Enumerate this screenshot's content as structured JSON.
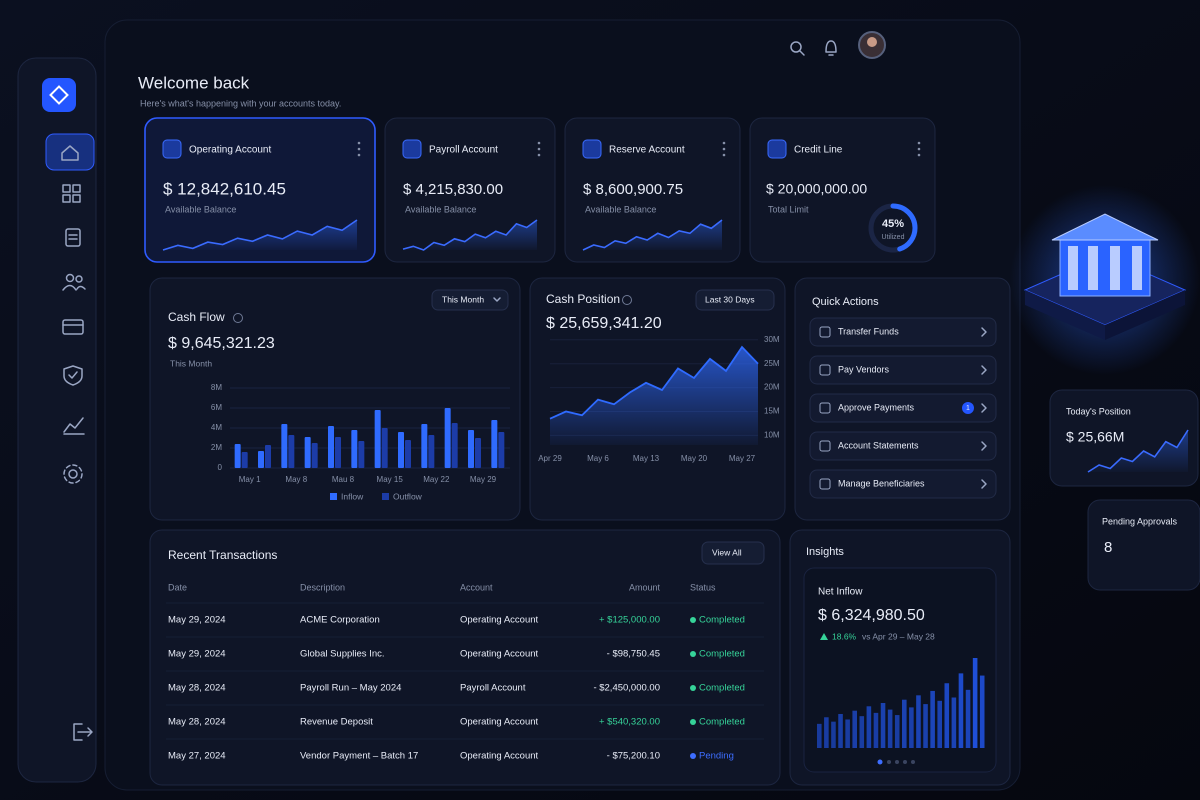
{
  "header": {
    "title": "Welcome back",
    "subtitle": "Here's what's happening with your accounts today."
  },
  "accounts": [
    {
      "name": "Operating Account",
      "balance": "$ 12,842,610.45",
      "balance_label": "Available Balance",
      "trend": [
        2,
        2.6,
        2.2,
        3,
        2.7,
        3.5,
        3.1,
        3.9,
        3.4,
        4.4,
        3.9,
        5,
        4.5,
        5.8
      ]
    },
    {
      "name": "Payroll Account",
      "balance": "$ 4,215,830.00",
      "balance_label": "Available Balance",
      "trend": [
        2.5,
        2.8,
        2.4,
        3.2,
        2.9,
        3.6,
        3.3,
        4.1,
        3.7,
        4.4,
        4,
        5.2,
        4.8,
        5.6
      ]
    },
    {
      "name": "Reserve Account",
      "balance": "$ 8,600,900.75",
      "balance_label": "Available Balance",
      "trend": [
        1.8,
        2.4,
        2.1,
        2.9,
        2.6,
        3.4,
        3,
        3.8,
        3.3,
        4.1,
        3.8,
        4.9,
        4.4,
        5.4
      ]
    }
  ],
  "credit_line": {
    "name": "Credit Line",
    "balance": "$ 20,000,000.00",
    "balance_label": "Total Limit",
    "utilized": 45,
    "utilized_label": "45%",
    "utilized_caption": "Utilized"
  },
  "cash_flow": {
    "title": "Cash Flow",
    "period": "This Month",
    "total": "$ 9,645,321.23",
    "total_period": "This Month",
    "chart": {
      "type": "bar",
      "categories": [
        "May 1",
        null,
        "May 8",
        null,
        "Mau 8",
        null,
        "May 15",
        null,
        "May 22",
        null,
        "May 29",
        null
      ],
      "series": [
        {
          "name": "Inflow",
          "color": "#2f6bff",
          "values": [
            2.4,
            1.7,
            4.4,
            3.1,
            4.2,
            3.8,
            5.8,
            3.6,
            4.4,
            6.0,
            3.8,
            4.8
          ]
        },
        {
          "name": "Outflow",
          "color": "#1c3ca8",
          "values": [
            1.6,
            2.3,
            3.3,
            2.5,
            3.1,
            2.7,
            4.0,
            2.8,
            3.3,
            4.5,
            3.0,
            3.6
          ]
        }
      ],
      "ylim": [
        0,
        8
      ],
      "yticks": [
        0,
        {
          "value": 2,
          "label": "2M"
        },
        {
          "value": 4,
          "label": "4M"
        },
        {
          "value": 6,
          "label": "6M"
        },
        {
          "value": 8,
          "label": "8M"
        }
      ]
    }
  },
  "cash_position": {
    "title": "Cash Position",
    "period": "Last 30 Days",
    "total": "$ 25,659,341.20",
    "chart": {
      "type": "area",
      "categories": [
        "Apr 29",
        null,
        null,
        "May 6",
        null,
        null,
        "May 13",
        null,
        null,
        "May 20",
        null,
        null,
        "May 27",
        null
      ],
      "values": [
        13.5,
        15,
        14.2,
        17.5,
        16.5,
        19,
        21,
        19.5,
        24,
        22,
        26,
        23.5,
        28.5,
        25
      ],
      "color": "#2f6bff",
      "ylim": [
        8,
        31
      ],
      "yticks": [
        {
          "value": 10,
          "label": "10M"
        },
        {
          "value": 15,
          "label": "15M"
        },
        {
          "value": 20,
          "label": "20M"
        },
        {
          "value": 25,
          "label": "25M"
        },
        {
          "value": 30,
          "label": "30M"
        }
      ]
    }
  },
  "quick_actions": {
    "title": "Quick Actions",
    "items": [
      {
        "label": "Transfer Funds"
      },
      {
        "label": "Pay Vendors"
      },
      {
        "label": "Approve Payments",
        "badge": 1
      },
      {
        "label": "Account Statements"
      },
      {
        "label": "Manage Beneficiaries"
      }
    ]
  },
  "transactions": {
    "title": "Recent Transactions",
    "action": "View All",
    "columns": [
      "Date",
      "Description",
      "Account",
      "Amount",
      "Status"
    ],
    "rows": [
      {
        "date": "May 29, 2024",
        "description": "ACME Corporation",
        "account": "Operating Account",
        "amount": "+ $125,000.00",
        "amount_color": "#36d399",
        "status": "Completed",
        "status_color": "#36d399"
      },
      {
        "date": "May 29, 2024",
        "description": "Global Supplies Inc.",
        "account": "Operating Account",
        "amount": "- $98,750.45",
        "amount_color": "#e8ecf7",
        "status": "Completed",
        "status_color": "#36d399"
      },
      {
        "date": "May 28, 2024",
        "description": "Payroll Run – May 2024",
        "account": "Payroll Account",
        "amount": "- $2,450,000.00",
        "amount_color": "#e8ecf7",
        "status": "Completed",
        "status_color": "#36d399"
      },
      {
        "date": "May 28, 2024",
        "description": "Revenue Deposit",
        "account": "Operating Account",
        "amount": "+ $540,320.00",
        "amount_color": "#36d399",
        "status": "Completed",
        "status_color": "#36d399"
      },
      {
        "date": "May 27, 2024",
        "description": "Vendor Payment – Batch 17",
        "account": "Operating Account",
        "amount": "- $75,200.10",
        "amount_color": "#e8ecf7",
        "status": "Pending",
        "status_color": "#3d6dff"
      }
    ]
  },
  "insights": {
    "title": "Insights",
    "metric": "Net Inflow",
    "value": "$ 6,324,980.50",
    "change": "18.6%",
    "comparison": "vs Apr 29 – May 28",
    "bars": [
      2.2,
      2.8,
      2.4,
      3.1,
      2.6,
      3.4,
      2.9,
      3.8,
      3.2,
      4.1,
      3.5,
      3.0,
      4.4,
      3.7,
      4.8,
      4.0,
      5.2,
      4.3,
      5.9,
      4.6,
      6.8,
      5.3,
      8.2,
      6.6
    ]
  },
  "today_position": {
    "title": "Today's Position",
    "value": "$ 25,66M",
    "trend": [
      2,
      2.6,
      2.3,
      3.2,
      2.9,
      3.8,
      3.3,
      4.6,
      4.1,
      5.6
    ]
  },
  "pending_approvals": {
    "title": "Pending Approvals",
    "value": 8
  }
}
